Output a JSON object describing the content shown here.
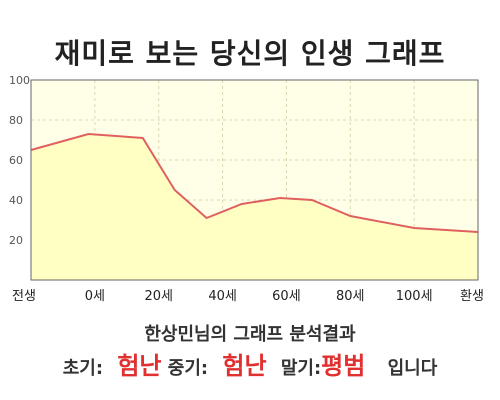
{
  "title": "재미로 보는 당신의 인생 그래프",
  "chart_data": {
    "type": "area",
    "x_labels": [
      "전생",
      "0세",
      "20세",
      "40세",
      "60세",
      "80세",
      "100세",
      "환생"
    ],
    "x": [
      -20,
      0,
      20,
      40,
      60,
      80,
      100,
      120
    ],
    "series": [
      {
        "points": [
          {
            "x": -20,
            "y": 65
          },
          {
            "x": -2,
            "y": 73
          },
          {
            "x": 15,
            "y": 71
          },
          {
            "x": 25,
            "y": 45
          },
          {
            "x": 35,
            "y": 31
          },
          {
            "x": 46,
            "y": 38
          },
          {
            "x": 58,
            "y": 41
          },
          {
            "x": 68,
            "y": 40
          },
          {
            "x": 80,
            "y": 32
          },
          {
            "x": 100,
            "y": 26
          },
          {
            "x": 120,
            "y": 24
          }
        ]
      }
    ],
    "yticks": [
      20,
      40,
      60,
      80,
      100
    ],
    "ylim": [
      0,
      100
    ],
    "xlim": [
      -20,
      120
    ],
    "grid": true,
    "colors": {
      "line": "#e06060",
      "fill": "#ffffc4",
      "plot_bg": "#ffffe8",
      "grid": "#d8d8b0"
    }
  },
  "result": {
    "title": "한상민님의 그래프 분석결과",
    "early_label": "초기:",
    "early_value": "험난",
    "middle_label": "중기:",
    "middle_value": "험난",
    "late_label": "말기:",
    "late_value": "평범",
    "suffix": "입니다"
  }
}
